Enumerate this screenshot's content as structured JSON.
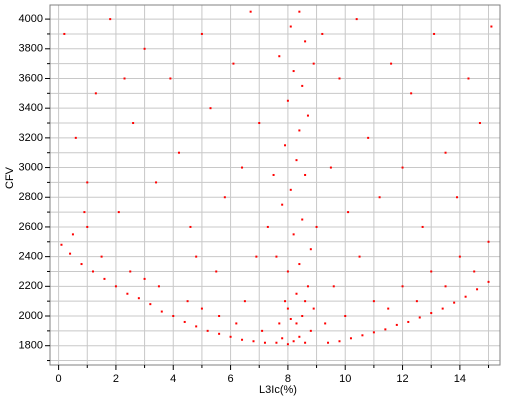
{
  "chart_data": {
    "type": "scatter",
    "x_label": "L3Ic(%)",
    "y_label": "CFV",
    "color": "#ff0000",
    "xlim": [
      -0.3,
      15.4
    ],
    "ylim": [
      1670,
      4095
    ],
    "xticks": [
      0,
      2,
      4,
      6,
      8,
      10,
      12,
      14
    ],
    "yticks": [
      1800,
      2000,
      2200,
      2400,
      2600,
      2800,
      3000,
      3200,
      3400,
      3600,
      3800,
      4000
    ],
    "x_minor_ticks": [
      1,
      3,
      5,
      7,
      9,
      11,
      13,
      15
    ],
    "y_minor_ticks": [
      1700,
      1900,
      2100,
      2300,
      2500,
      2700,
      2900,
      3100,
      3300,
      3500,
      3700,
      3900
    ],
    "grid": true,
    "x": [
      7.6,
      7.8,
      8.0,
      8.2,
      8.4,
      8.6,
      8.8,
      7.7,
      8.1,
      8.5,
      8.9,
      7.9,
      8.3,
      8.7,
      8.0,
      8.4,
      7.6,
      8.8,
      8.2,
      8.5,
      7.8,
      8.1,
      8.6,
      8.3,
      7.9,
      8.4,
      8.7,
      8.0,
      8.5,
      8.2,
      7.7,
      8.6,
      8.1,
      8.4,
      8.9,
      7.5,
      9.0,
      8.3,
      8.0,
      8.6,
      0.1,
      0.4,
      0.8,
      1.2,
      1.6,
      2.0,
      2.4,
      2.8,
      3.2,
      3.6,
      4.0,
      4.4,
      4.8,
      5.2,
      5.6,
      6.0,
      6.4,
      6.8,
      7.2,
      9.4,
      9.8,
      10.2,
      10.6,
      11.0,
      11.4,
      11.8,
      12.2,
      12.6,
      13.0,
      13.4,
      13.8,
      14.2,
      14.6,
      15.0,
      0.5,
      1.0,
      1.5,
      2.5,
      3.0,
      3.5,
      4.5,
      5.0,
      5.5,
      5.6,
      6.2,
      6.5,
      6.9,
      7.1,
      9.3,
      9.6,
      10.0,
      10.5,
      11.0,
      11.5,
      12.0,
      12.5,
      13.0,
      13.5,
      14.0,
      14.5,
      15.0,
      0.2,
      0.6,
      1.0,
      1.3,
      1.8,
      2.1,
      2.6,
      3.0,
      3.4,
      3.9,
      4.2,
      4.6,
      5.0,
      5.3,
      5.8,
      6.1,
      6.4,
      6.7,
      7.0,
      7.3,
      9.2,
      9.5,
      9.8,
      10.1,
      10.4,
      10.8,
      11.2,
      11.6,
      12.0,
      12.3,
      12.7,
      13.1,
      13.5,
      13.9,
      14.3,
      14.7,
      15.1,
      0.9,
      2.3,
      4.8
    ],
    "values": [
      1820,
      1850,
      1810,
      1830,
      1860,
      1820,
      1900,
      1950,
      1980,
      2000,
      2050,
      2100,
      2150,
      2200,
      2300,
      2350,
      2400,
      2450,
      2550,
      2650,
      2750,
      2850,
      2950,
      3050,
      3150,
      3250,
      3350,
      3450,
      3550,
      3650,
      3750,
      3850,
      3950,
      4050,
      3700,
      2950,
      2600,
      1950,
      2050,
      2100,
      2480,
      2420,
      2350,
      2300,
      2250,
      2200,
      2150,
      2120,
      2080,
      2030,
      2000,
      1960,
      1930,
      1900,
      1880,
      1860,
      1840,
      1830,
      1820,
      1820,
      1830,
      1850,
      1870,
      1890,
      1910,
      1940,
      1960,
      1990,
      2020,
      2050,
      2090,
      2130,
      2180,
      2230,
      2550,
      2600,
      2400,
      2300,
      2250,
      2200,
      2100,
      2050,
      2300,
      2000,
      1950,
      2100,
      2400,
      1900,
      1950,
      2200,
      2000,
      2400,
      2100,
      2050,
      2200,
      2100,
      2300,
      2200,
      2400,
      2300,
      2500,
      3900,
      3200,
      2900,
      3500,
      4000,
      2700,
      3300,
      3800,
      2900,
      3600,
      3100,
      2600,
      3900,
      3400,
      2800,
      3700,
      3000,
      4050,
      3300,
      2600,
      3900,
      3000,
      3600,
      2700,
      4000,
      3200,
      2800,
      3700,
      3000,
      3500,
      2600,
      3900,
      3100,
      2800,
      3600,
      3300,
      3950,
      2700,
      3600,
      2400
    ]
  }
}
